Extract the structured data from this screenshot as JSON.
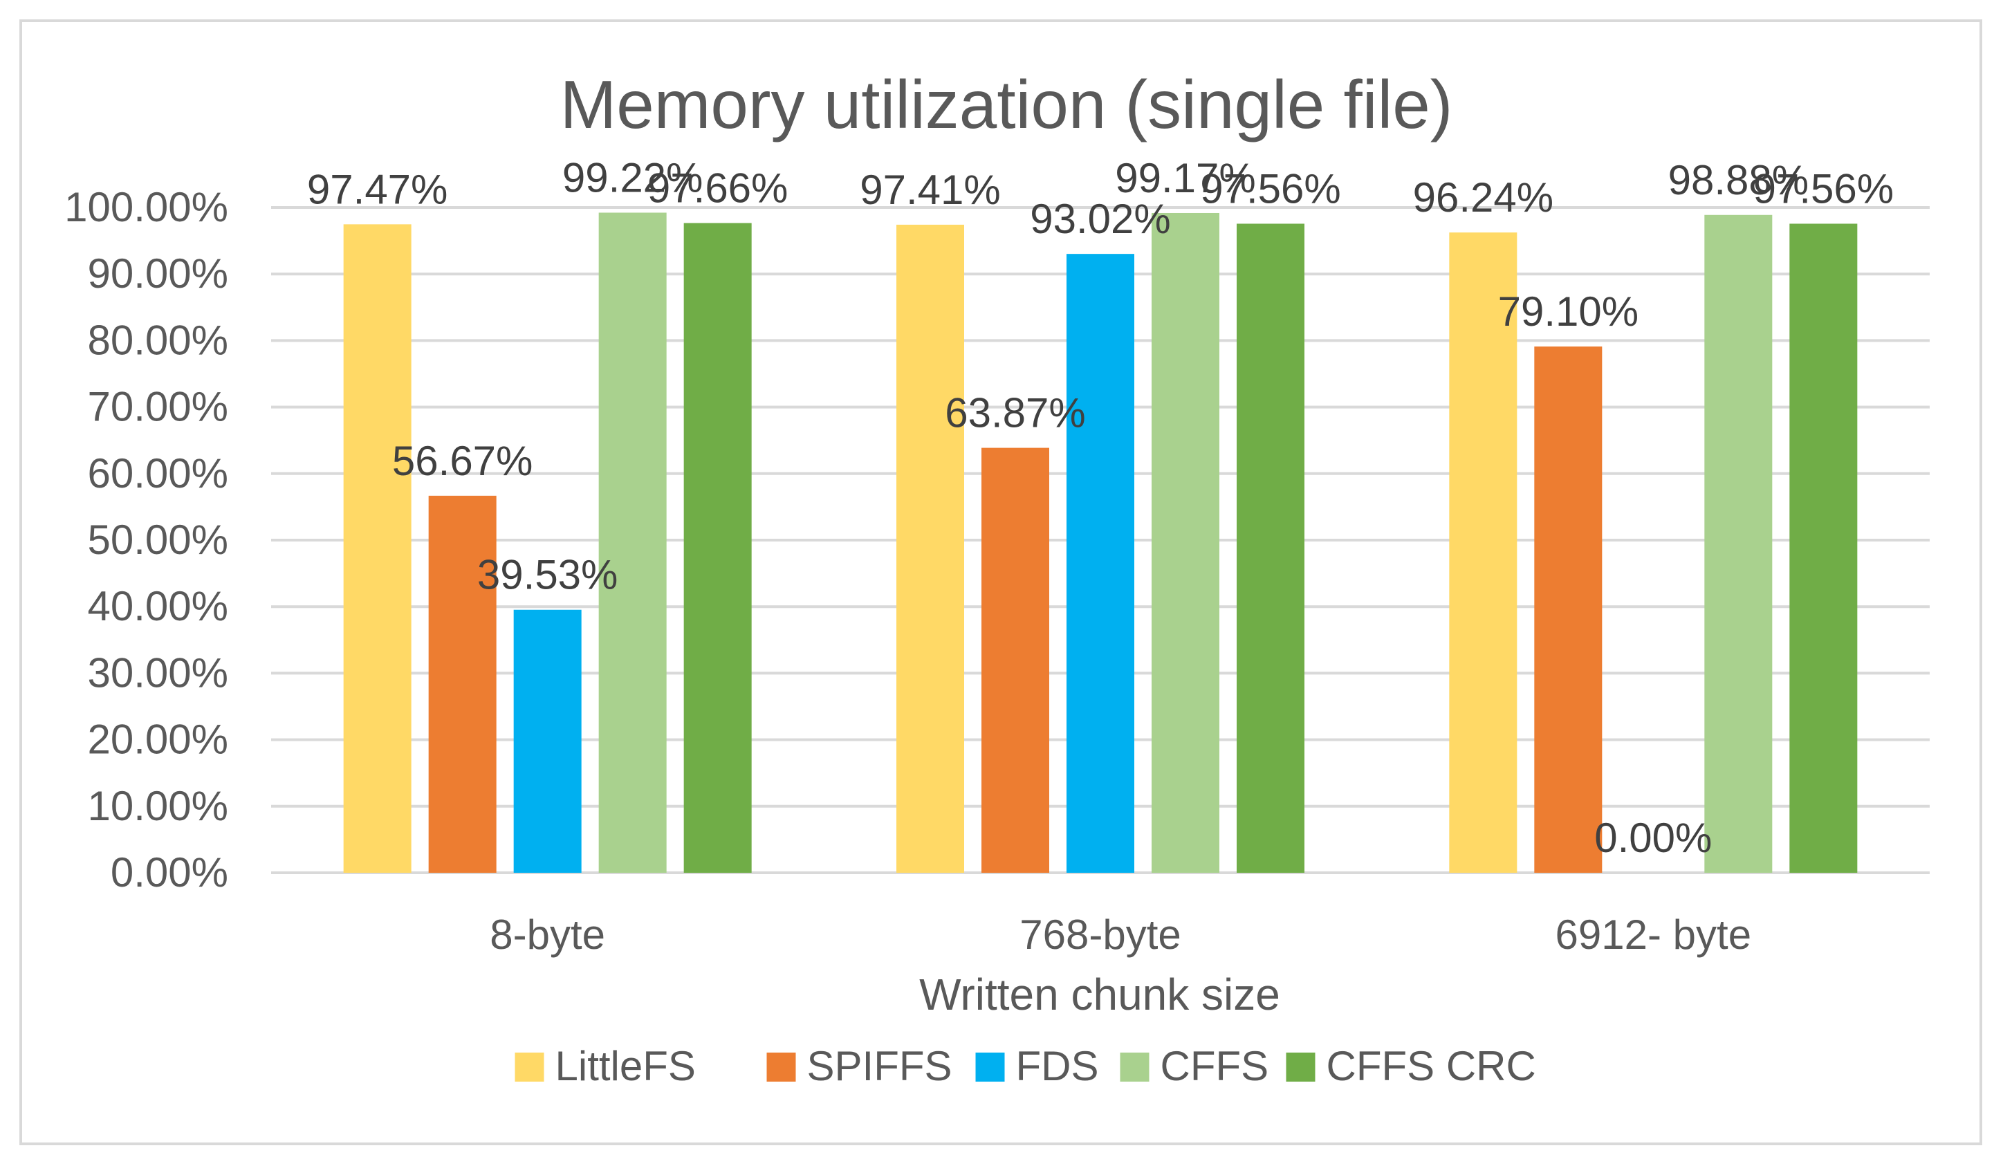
{
  "chart_data": {
    "type": "bar",
    "title": "Memory utilization (single file)",
    "xlabel": "Written chunk size",
    "ylabel": "",
    "ylim": [
      0,
      100
    ],
    "ytick_step": 10,
    "y_tick_labels": [
      "0.00%",
      "10.00%",
      "20.00%",
      "30.00%",
      "40.00%",
      "50.00%",
      "60.00%",
      "70.00%",
      "80.00%",
      "90.00%",
      "100.00%"
    ],
    "grid": true,
    "legend_position": "bottom",
    "categories": [
      "8-byte",
      "768-byte",
      "6912- byte"
    ],
    "series": [
      {
        "name": "LittleFS",
        "color": "#ffd966",
        "values": [
          97.47,
          97.41,
          96.24
        ],
        "labels": [
          "97.47%",
          "97.41%",
          "96.24%"
        ]
      },
      {
        "name": "SPIFFS",
        "color": "#ed7d31",
        "values": [
          56.67,
          63.87,
          79.1
        ],
        "labels": [
          "56.67%",
          "63.87%",
          "79.10%"
        ]
      },
      {
        "name": "FDS",
        "color": "#00b0f0",
        "values": [
          39.53,
          93.02,
          0.0
        ],
        "labels": [
          "39.53%",
          "93.02%",
          "0.00%"
        ]
      },
      {
        "name": "CFFS",
        "color": "#a9d18e",
        "values": [
          99.22,
          99.17,
          98.88
        ],
        "labels": [
          "99.22%",
          "99.17%",
          "98.88%"
        ]
      },
      {
        "name": "CFFS CRC",
        "color": "#70ad47",
        "values": [
          97.66,
          97.56,
          97.56
        ],
        "labels": [
          "97.66%",
          "97.56%",
          "97.56%"
        ]
      }
    ]
  }
}
